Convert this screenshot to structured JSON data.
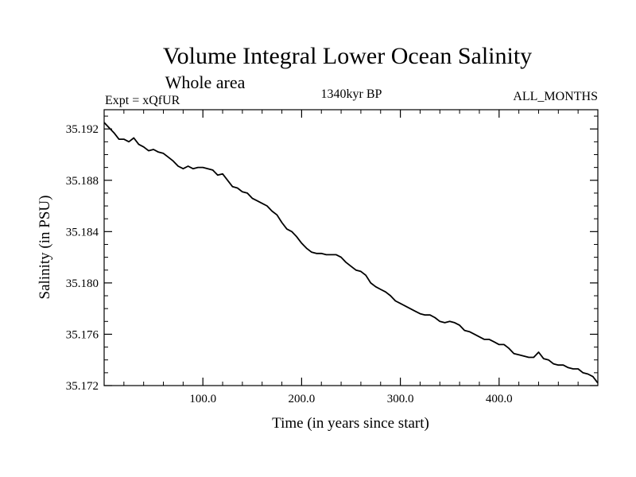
{
  "chart_data": {
    "type": "line",
    "title": "Volume Integral Lower Ocean Salinity",
    "subtitle": "Whole area",
    "left_label": "Expt = xQfUR",
    "center_label": "1340kyr BP",
    "right_label": "ALL_MONTHS",
    "xlabel": "Time (in years since start)",
    "ylabel": "Salinity (in PSU)",
    "xlim": [
      0,
      500
    ],
    "ylim": [
      35.172,
      35.1935
    ],
    "xticks": [
      100,
      200,
      300,
      400
    ],
    "xtick_labels": [
      "100.0",
      "200.0",
      "300.0",
      "400.0"
    ],
    "yticks": [
      35.172,
      35.176,
      35.18,
      35.184,
      35.188,
      35.192
    ],
    "ytick_labels": [
      "35.172",
      "35.176",
      "35.180",
      "35.184",
      "35.188",
      "35.192"
    ],
    "grid": false,
    "series": [
      {
        "name": "Salinity",
        "color": "#000000",
        "x": [
          0,
          5,
          10,
          15,
          20,
          25,
          30,
          35,
          40,
          45,
          50,
          55,
          60,
          65,
          70,
          75,
          80,
          85,
          90,
          95,
          100,
          105,
          110,
          115,
          120,
          125,
          130,
          135,
          140,
          145,
          150,
          155,
          160,
          165,
          170,
          175,
          180,
          185,
          190,
          195,
          200,
          205,
          210,
          215,
          220,
          225,
          230,
          235,
          240,
          245,
          250,
          255,
          260,
          265,
          270,
          275,
          280,
          285,
          290,
          295,
          300,
          305,
          310,
          315,
          320,
          325,
          330,
          335,
          340,
          345,
          350,
          355,
          360,
          365,
          370,
          375,
          380,
          385,
          390,
          395,
          400,
          405,
          410,
          415,
          420,
          425,
          430,
          435,
          440,
          445,
          450,
          455,
          460,
          465,
          470,
          475,
          480,
          485,
          490,
          495,
          500
        ],
        "values": [
          35.1925,
          35.1921,
          35.1917,
          35.1912,
          35.1912,
          35.191,
          35.1913,
          35.1908,
          35.1906,
          35.1903,
          35.1904,
          35.1902,
          35.1901,
          35.1898,
          35.1895,
          35.1891,
          35.1889,
          35.1891,
          35.1889,
          35.189,
          35.189,
          35.1889,
          35.1888,
          35.1884,
          35.1885,
          35.188,
          35.1875,
          35.1874,
          35.1871,
          35.187,
          35.1866,
          35.1864,
          35.1862,
          35.186,
          35.1856,
          35.1853,
          35.1847,
          35.1842,
          35.184,
          35.1836,
          35.1831,
          35.1827,
          35.1824,
          35.1823,
          35.1823,
          35.1822,
          35.1822,
          35.1822,
          35.182,
          35.1816,
          35.1813,
          35.181,
          35.1809,
          35.1806,
          35.18,
          35.1797,
          35.1795,
          35.1793,
          35.179,
          35.1786,
          35.1784,
          35.1782,
          35.178,
          35.1778,
          35.1776,
          35.1775,
          35.1775,
          35.1773,
          35.177,
          35.1769,
          35.177,
          35.1769,
          35.1767,
          35.1763,
          35.1762,
          35.176,
          35.1758,
          35.1756,
          35.1756,
          35.1754,
          35.1752,
          35.1752,
          35.1749,
          35.1745,
          35.1744,
          35.1743,
          35.1742,
          35.1742,
          35.1746,
          35.1741,
          35.174,
          35.1737,
          35.1736,
          35.1736,
          35.1734,
          35.1733,
          35.1733,
          35.173,
          35.1729,
          35.1727,
          35.1722
        ]
      }
    ]
  }
}
